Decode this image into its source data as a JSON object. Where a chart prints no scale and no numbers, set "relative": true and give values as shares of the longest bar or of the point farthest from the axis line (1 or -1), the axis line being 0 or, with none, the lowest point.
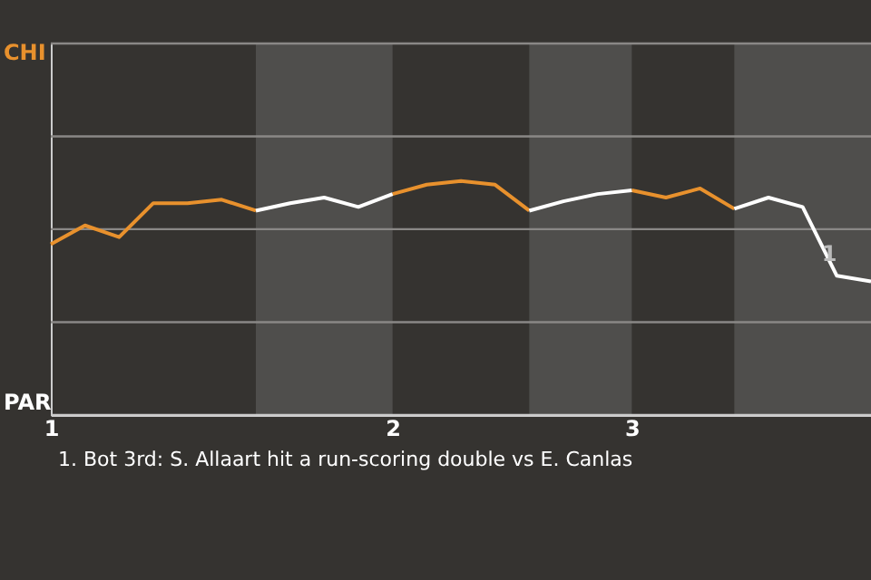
{
  "chart_data": {
    "type": "line",
    "relative": true,
    "categories": [
      "1",
      null,
      null,
      null,
      null,
      null,
      null,
      null,
      null,
      null,
      "2",
      null,
      null,
      null,
      null,
      null,
      null,
      "3",
      null,
      null,
      null,
      null,
      null,
      null,
      null
    ],
    "series": [
      {
        "color": "#e8912d",
        "values": [
          0.73,
          0.81,
          0.76,
          0.905,
          0.905,
          0.92,
          0.873,
          null,
          null,
          null,
          0.944,
          0.984,
          1,
          0.984,
          0.873,
          null,
          null,
          0.96,
          0.929,
          0.968,
          0.881,
          null,
          null,
          null,
          null
        ]
      },
      {
        "color": "#ffffff",
        "values": [
          null,
          null,
          null,
          null,
          null,
          null,
          0.873,
          0.905,
          0.929,
          0.889,
          0.944,
          null,
          null,
          null,
          0.873,
          0.913,
          0.944,
          0.96,
          null,
          null,
          0.881,
          0.929,
          0.889,
          0.595,
          0.571
        ]
      }
    ],
    "ref_lines": [
      {
        "axis": "y",
        "value": 0,
        "label": "PAR",
        "color": "#cccccc"
      },
      {
        "axis": "y",
        "value": 0.397,
        "label": null,
        "color": "#8a8886"
      },
      {
        "axis": "y",
        "value": 0.794,
        "label": null,
        "color": "#8a8886"
      },
      {
        "axis": "y",
        "value": 1.19,
        "label": null,
        "color": "#8a8886"
      },
      {
        "axis": "y",
        "value": 1.587,
        "label": "CHI",
        "color": "#8a8886"
      }
    ],
    "annotations": [
      "1",
      "1. Bot 3rd: S. Allaart hit a run-scoring double vs E. Canlas"
    ],
    "marker": "none",
    "line_style": "solid"
  }
}
